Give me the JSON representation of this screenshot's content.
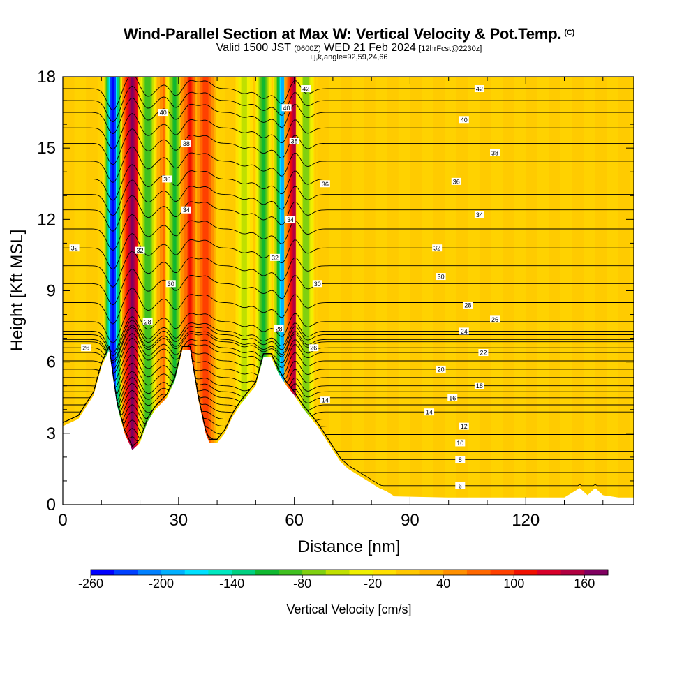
{
  "header": {
    "title": "Wind-Parallel Section at Max W: Vertical Velocity & Pot.Temp.",
    "copyright": "(C)",
    "valid_prefix": "Valid 1500 JST",
    "valid_utc": "(0600Z)",
    "valid_date": "WED 21 Feb 2024",
    "forecast": "[12hrFcst@2230z]",
    "indices": "i,j,k,angle=92,59,24,66"
  },
  "chart_data": {
    "type": "heatmap",
    "xlabel": "Distance [nm]",
    "ylabel": "Height [Kft MSL]",
    "xlim": [
      0,
      148
    ],
    "ylim": [
      0,
      18
    ],
    "x_ticks": [
      "0",
      "30",
      "60",
      "90",
      "120"
    ],
    "y_ticks": [
      "0",
      "3",
      "6",
      "9",
      "12",
      "15",
      "18"
    ],
    "colorbar": {
      "label": "Vertical Velocity [cm/s]",
      "min": -260,
      "max": 180,
      "step": 20,
      "tick_labels": [
        "-260",
        "-200",
        "-140",
        "-80",
        "-20",
        "40",
        "100",
        "160"
      ],
      "colors": [
        "#0000ff",
        "#0040ff",
        "#0080ff",
        "#00b0ff",
        "#00e0ff",
        "#00e8c0",
        "#00d080",
        "#10b830",
        "#40c020",
        "#80d010",
        "#c0e000",
        "#f0f000",
        "#ffe000",
        "#ffc800",
        "#ffb000",
        "#ff9000",
        "#ff6800",
        "#ff4000",
        "#f01000",
        "#d8002a",
        "#b00040",
        "#800060"
      ]
    },
    "background_velocity_cm_s": 20,
    "updraft_downdraft_bands": [
      {
        "x_nm": 13,
        "w_cm_s": -260
      },
      {
        "x_nm": 18,
        "w_cm_s": 180
      },
      {
        "x_nm": 22,
        "w_cm_s": -100
      },
      {
        "x_nm": 27,
        "w_cm_s": 80
      },
      {
        "x_nm": 29,
        "w_cm_s": -120
      },
      {
        "x_nm": 33,
        "w_cm_s": 100
      },
      {
        "x_nm": 37,
        "w_cm_s": 90
      },
      {
        "x_nm": 47,
        "w_cm_s": -60
      },
      {
        "x_nm": 52,
        "w_cm_s": -120
      },
      {
        "x_nm": 57,
        "w_cm_s": -200
      },
      {
        "x_nm": 60,
        "w_cm_s": 140
      },
      {
        "x_nm": 63,
        "w_cm_s": -80
      }
    ],
    "terrain_kft": {
      "x": [
        0,
        4,
        8,
        10,
        12,
        14,
        16,
        18,
        20,
        22,
        24,
        27,
        29,
        31,
        33,
        35,
        37,
        38,
        40,
        42,
        44,
        46,
        48,
        50,
        52,
        54,
        56,
        58,
        60,
        62,
        64,
        66,
        68,
        70,
        72,
        74,
        76,
        78,
        80,
        82,
        84,
        86,
        100,
        110,
        130,
        134,
        136,
        138,
        140,
        144,
        148
      ],
      "y": [
        3.3,
        3.6,
        4.6,
        5.8,
        6.5,
        4.2,
        3.0,
        2.3,
        2.6,
        3.5,
        4.0,
        4.5,
        5.2,
        6.5,
        6.5,
        4.5,
        3.0,
        2.6,
        2.6,
        3.0,
        3.7,
        4.2,
        4.6,
        5.0,
        6.2,
        6.2,
        5.5,
        5.0,
        4.6,
        4.1,
        3.7,
        3.3,
        2.8,
        2.3,
        1.8,
        1.5,
        1.3,
        1.1,
        0.9,
        0.7,
        0.55,
        0.35,
        0.3,
        0.3,
        0.3,
        0.7,
        0.4,
        0.7,
        0.4,
        0.3,
        0.3
      ]
    },
    "theta_contours": [
      {
        "label": "6",
        "height_kft": 0.8,
        "label_x_nm": 103
      },
      {
        "label": "8",
        "height_kft": 1.9,
        "label_x_nm": 103
      },
      {
        "label": "10",
        "height_kft": 2.6,
        "label_x_nm": 103
      },
      {
        "label": "12",
        "height_kft": 3.3,
        "label_x_nm": 104
      },
      {
        "label": "14",
        "height_kft": 3.9,
        "label_x_nm": 95
      },
      {
        "label": "14",
        "height_kft": 4.4,
        "label_x_nm": 68
      },
      {
        "label": "16",
        "height_kft": 4.5,
        "label_x_nm": 101
      },
      {
        "label": "18",
        "height_kft": 5.0,
        "label_x_nm": 108
      },
      {
        "label": "20",
        "height_kft": 5.7,
        "label_x_nm": 98
      },
      {
        "label": "22",
        "height_kft": 6.4,
        "label_x_nm": 109
      },
      {
        "label": "24",
        "height_kft": 7.3,
        "label_x_nm": 104
      },
      {
        "label": "26",
        "height_kft": 6.6,
        "label_x_nm": 6
      },
      {
        "label": "26",
        "height_kft": 6.6,
        "label_x_nm": 65
      },
      {
        "label": "26",
        "height_kft": 7.8,
        "label_x_nm": 112
      },
      {
        "label": "28",
        "height_kft": 7.7,
        "label_x_nm": 22
      },
      {
        "label": "28",
        "height_kft": 7.4,
        "label_x_nm": 56
      },
      {
        "label": "28",
        "height_kft": 8.4,
        "label_x_nm": 105
      },
      {
        "label": "30",
        "height_kft": 9.3,
        "label_x_nm": 28
      },
      {
        "label": "30",
        "height_kft": 9.3,
        "label_x_nm": 66
      },
      {
        "label": "30",
        "height_kft": 9.6,
        "label_x_nm": 98
      },
      {
        "label": "32",
        "height_kft": 10.8,
        "label_x_nm": 3
      },
      {
        "label": "32",
        "height_kft": 10.7,
        "label_x_nm": 20
      },
      {
        "label": "32",
        "height_kft": 10.4,
        "label_x_nm": 55
      },
      {
        "label": "32",
        "height_kft": 10.8,
        "label_x_nm": 97
      },
      {
        "label": "34",
        "height_kft": 12.4,
        "label_x_nm": 32
      },
      {
        "label": "34",
        "height_kft": 12.0,
        "label_x_nm": 59
      },
      {
        "label": "34",
        "height_kft": 12.2,
        "label_x_nm": 108
      },
      {
        "label": "36",
        "height_kft": 13.7,
        "label_x_nm": 27
      },
      {
        "label": "36",
        "height_kft": 13.5,
        "label_x_nm": 68
      },
      {
        "label": "36",
        "height_kft": 13.6,
        "label_x_nm": 102
      },
      {
        "label": "38",
        "height_kft": 15.2,
        "label_x_nm": 32
      },
      {
        "label": "38",
        "height_kft": 15.3,
        "label_x_nm": 60
      },
      {
        "label": "38",
        "height_kft": 14.8,
        "label_x_nm": 112
      },
      {
        "label": "40",
        "height_kft": 16.5,
        "label_x_nm": 26
      },
      {
        "label": "40",
        "height_kft": 16.7,
        "label_x_nm": 58
      },
      {
        "label": "40",
        "height_kft": 16.2,
        "label_x_nm": 104
      },
      {
        "label": "42",
        "height_kft": 17.5,
        "label_x_nm": 63
      },
      {
        "label": "42",
        "height_kft": 17.5,
        "label_x_nm": 108
      }
    ]
  }
}
